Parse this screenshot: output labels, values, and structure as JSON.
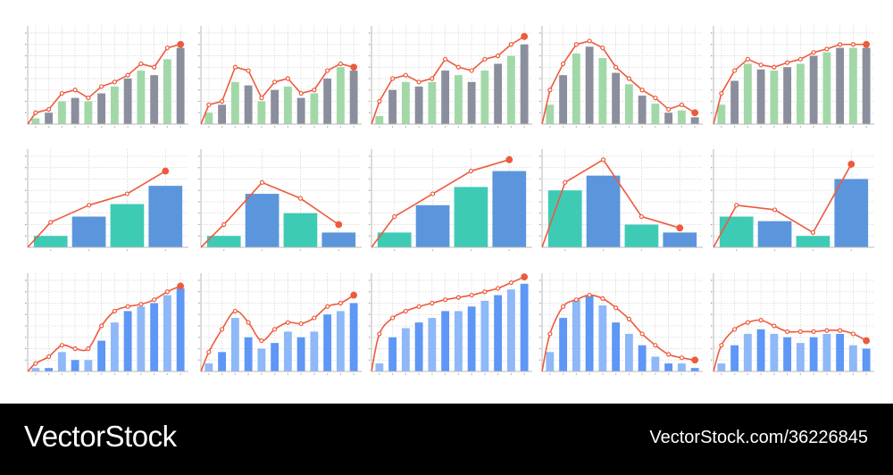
{
  "colors": {
    "line": "#ee5a3c",
    "grid": "#d4d4d4",
    "axis": "#b9b9b9",
    "bar_green": "#a2d8a8",
    "bar_gray": "#8b8e9c",
    "bar_teal": "#3ecbb6",
    "bar_blue": "#5b96dc",
    "bar_lightblue": "#8eb8f8",
    "bar_brightblue": "#5e97f5",
    "footer_bg": "#000000",
    "footer_text": "#ffffff"
  },
  "footer": {
    "brand": "VectorStock",
    "url": "VectorStock.com/36226845"
  },
  "chart_data": [
    {
      "id": "r1c1",
      "type": "bar+line",
      "row": 0,
      "col": 0,
      "ylim": [
        0,
        8
      ],
      "grid": true,
      "smooth": false,
      "palette": [
        "bar_green",
        "bar_gray"
      ],
      "bars": [
        0.5,
        1,
        2,
        2.3,
        2,
        2.7,
        3.3,
        4,
        4.7,
        4.3,
        5.7,
        6.7
      ],
      "line": [
        0,
        1,
        1.3,
        2.7,
        3,
        2.3,
        3.3,
        3.7,
        4.3,
        5.3,
        5,
        6.7,
        7
      ]
    },
    {
      "id": "r1c2",
      "type": "bar+line",
      "row": 0,
      "col": 1,
      "ylim": [
        0,
        8
      ],
      "grid": true,
      "smooth": false,
      "palette": [
        "bar_green",
        "bar_gray"
      ],
      "bars": [
        1,
        1.7,
        3.7,
        3.4,
        2,
        3,
        3.3,
        2.3,
        2.7,
        4,
        5,
        4.7
      ],
      "line": [
        0,
        1.7,
        2,
        5,
        4.7,
        2.3,
        3.7,
        4,
        2.7,
        3,
        4.7,
        5.3,
        5
      ]
    },
    {
      "id": "r1c3",
      "type": "bar+line",
      "row": 0,
      "col": 2,
      "ylim": [
        0,
        8
      ],
      "grid": true,
      "smooth": false,
      "palette": [
        "bar_green",
        "bar_gray"
      ],
      "bars": [
        0.7,
        3,
        3.7,
        3.3,
        3.7,
        4.7,
        4.3,
        3.7,
        4.7,
        5.3,
        6,
        7
      ],
      "line": [
        0,
        2,
        4,
        4.3,
        3.7,
        4,
        5.7,
        5,
        4.7,
        5.7,
        6,
        7,
        7.7
      ]
    },
    {
      "id": "r1c4",
      "type": "bar+line",
      "row": 0,
      "col": 3,
      "ylim": [
        0,
        8
      ],
      "grid": true,
      "smooth": false,
      "palette": [
        "bar_green",
        "bar_gray"
      ],
      "bars": [
        1.7,
        4.3,
        6.2,
        6.8,
        5.8,
        4.5,
        3.5,
        2.5,
        1.8,
        1,
        1.2,
        0.6
      ],
      "line": [
        0,
        3,
        5.3,
        7,
        7.3,
        6.7,
        5,
        4,
        3,
        2.3,
        1.3,
        1.7,
        1
      ]
    },
    {
      "id": "r1c5",
      "type": "bar+line",
      "row": 0,
      "col": 4,
      "ylim": [
        0,
        8
      ],
      "grid": true,
      "smooth": false,
      "palette": [
        "bar_green",
        "bar_gray"
      ],
      "bars": [
        1.7,
        3.8,
        5.3,
        4.8,
        4.7,
        5,
        5.3,
        6,
        6.3,
        6.7,
        6.7,
        6.7
      ],
      "line": [
        0,
        2.7,
        4.7,
        5.7,
        5.2,
        5,
        5.4,
        5.7,
        6.3,
        6.6,
        7,
        7,
        7
      ]
    },
    {
      "id": "r2c1",
      "type": "bar+line",
      "row": 1,
      "col": 0,
      "ylim": [
        0,
        8
      ],
      "grid": true,
      "smooth": false,
      "palette": [
        "bar_teal",
        "bar_blue"
      ],
      "bars": [
        1,
        2.7,
        3.8,
        5.4
      ],
      "line": [
        0,
        2.2,
        3.7,
        4.7,
        6.7
      ]
    },
    {
      "id": "r2c2",
      "type": "bar+line",
      "row": 1,
      "col": 1,
      "ylim": [
        0,
        8
      ],
      "grid": true,
      "smooth": false,
      "palette": [
        "bar_teal",
        "bar_blue"
      ],
      "bars": [
        1,
        4.7,
        3,
        1.3
      ],
      "line": [
        0,
        2,
        5.7,
        4.3,
        2
      ]
    },
    {
      "id": "r2c3",
      "type": "bar+line",
      "row": 1,
      "col": 2,
      "ylim": [
        0,
        8
      ],
      "grid": true,
      "smooth": false,
      "palette": [
        "bar_teal",
        "bar_blue"
      ],
      "bars": [
        1.3,
        3.7,
        5.3,
        6.7
      ],
      "line": [
        0,
        2.7,
        4.7,
        6.7,
        7.7
      ]
    },
    {
      "id": "r2c4",
      "type": "bar+line",
      "row": 1,
      "col": 3,
      "ylim": [
        0,
        8
      ],
      "grid": true,
      "smooth": false,
      "palette": [
        "bar_teal",
        "bar_blue"
      ],
      "bars": [
        5,
        6.3,
        2,
        1.3
      ],
      "line": [
        0,
        5.7,
        7.7,
        2.7,
        1.7
      ]
    },
    {
      "id": "r2c5",
      "type": "bar+line",
      "row": 1,
      "col": 4,
      "ylim": [
        0,
        8
      ],
      "grid": true,
      "smooth": false,
      "palette": [
        "bar_teal",
        "bar_blue"
      ],
      "bars": [
        2.7,
        2.3,
        1,
        6
      ],
      "line": [
        0,
        3.7,
        3.3,
        1.3,
        7.3
      ]
    },
    {
      "id": "r3c1",
      "type": "bar+line",
      "row": 2,
      "col": 0,
      "ylim": [
        0,
        8
      ],
      "grid": true,
      "smooth": true,
      "palette": [
        "bar_lightblue",
        "bar_brightblue"
      ],
      "bars": [
        0.3,
        0.3,
        1.7,
        1,
        1,
        2.7,
        4.3,
        5.3,
        5.7,
        6,
        6.7,
        7.3
      ],
      "line": [
        0,
        0.7,
        1.3,
        2.3,
        2,
        2,
        4,
        5.3,
        5.7,
        5.9,
        6.3,
        7,
        7.5
      ]
    },
    {
      "id": "r3c2",
      "type": "bar+line",
      "row": 2,
      "col": 1,
      "ylim": [
        0,
        8
      ],
      "grid": true,
      "smooth": true,
      "palette": [
        "bar_lightblue",
        "bar_brightblue"
      ],
      "bars": [
        0.7,
        1.7,
        4.7,
        3,
        2,
        2.5,
        3.5,
        3,
        3.5,
        5,
        5.3,
        6
      ],
      "line": [
        0,
        1.7,
        3.7,
        5.3,
        4.3,
        2.7,
        3.7,
        4.3,
        4.2,
        4.7,
        5.7,
        6,
        6.7
      ]
    },
    {
      "id": "r3c3",
      "type": "bar+line",
      "row": 2,
      "col": 2,
      "ylim": [
        0,
        8
      ],
      "grid": true,
      "smooth": true,
      "palette": [
        "bar_lightblue",
        "bar_brightblue"
      ],
      "bars": [
        0.7,
        3,
        3.8,
        4.3,
        4.7,
        5.3,
        5.3,
        5.7,
        6.2,
        6.7,
        7.2,
        7.7
      ],
      "line": [
        0,
        3.3,
        4.7,
        5.3,
        5.7,
        6,
        6.3,
        6.5,
        6.7,
        7,
        7.3,
        7.8,
        8.3
      ]
    },
    {
      "id": "r3c4",
      "type": "bar+line",
      "row": 2,
      "col": 3,
      "ylim": [
        0,
        8
      ],
      "grid": true,
      "smooth": true,
      "palette": [
        "bar_lightblue",
        "bar_brightblue"
      ],
      "bars": [
        1.7,
        4.7,
        6.3,
        6.7,
        5.8,
        4.3,
        3.3,
        2.3,
        1.3,
        0.7,
        0.7,
        0.3
      ],
      "line": [
        0,
        3.3,
        5.7,
        6.3,
        6.7,
        6.4,
        5.6,
        4.6,
        3.3,
        2.3,
        1.5,
        1.2,
        1
      ]
    },
    {
      "id": "r3c5",
      "type": "bar+line",
      "row": 2,
      "col": 4,
      "ylim": [
        0,
        8
      ],
      "grid": true,
      "smooth": true,
      "palette": [
        "bar_lightblue",
        "bar_brightblue"
      ],
      "bars": [
        0.7,
        2.3,
        3.3,
        3.7,
        3.3,
        3,
        2.5,
        3,
        3.3,
        3.3,
        2.3,
        2
      ],
      "line": [
        0,
        2.3,
        3.7,
        4.3,
        4.5,
        4,
        3.5,
        3.5,
        3.5,
        3.6,
        3.6,
        3.3,
        2.7
      ]
    }
  ]
}
